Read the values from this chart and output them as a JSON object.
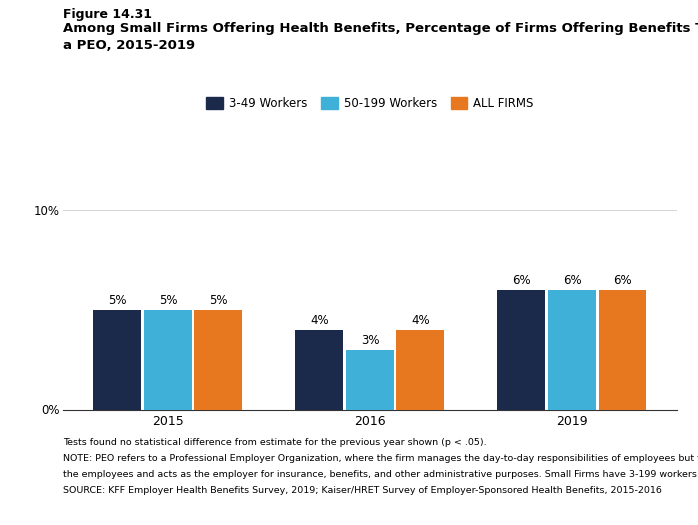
{
  "figure_label": "Figure 14.31",
  "title_line1": "Among Small Firms Offering Health Benefits, Percentage of Firms Offering Benefits Through",
  "title_line2": "a PEO, 2015-2019",
  "years": [
    "2015",
    "2016",
    "2019"
  ],
  "series": {
    "3-49 Workers": [
      5,
      4,
      6
    ],
    "50-199 Workers": [
      5,
      3,
      6
    ],
    "ALL FIRMS": [
      5,
      4,
      6
    ]
  },
  "colors": {
    "3-49 Workers": "#1b2a4a",
    "50-199 Workers": "#3fb0d8",
    "ALL FIRMS": "#e87820"
  },
  "ylim": [
    0,
    10
  ],
  "ytick_labels": [
    "0%",
    "10%"
  ],
  "bar_width": 0.25,
  "footnote_lines": [
    "Tests found no statistical difference from estimate for the previous year shown (p < .05).",
    "NOTE: PEO refers to a Professional Employer Organization, where the firm manages the day-to-day responsibilities of employees but the PEO also hires",
    "the employees and acts as the employer for insurance, benefits, and other administrative purposes. Small Firms have 3-199 workers.",
    "SOURCE: KFF Employer Health Benefits Survey, 2019; Kaiser/HRET Survey of Employer-Sponsored Health Benefits, 2015-2016"
  ],
  "legend_labels": [
    "3-49 Workers",
    "50-199 Workers",
    "ALL FIRMS"
  ]
}
